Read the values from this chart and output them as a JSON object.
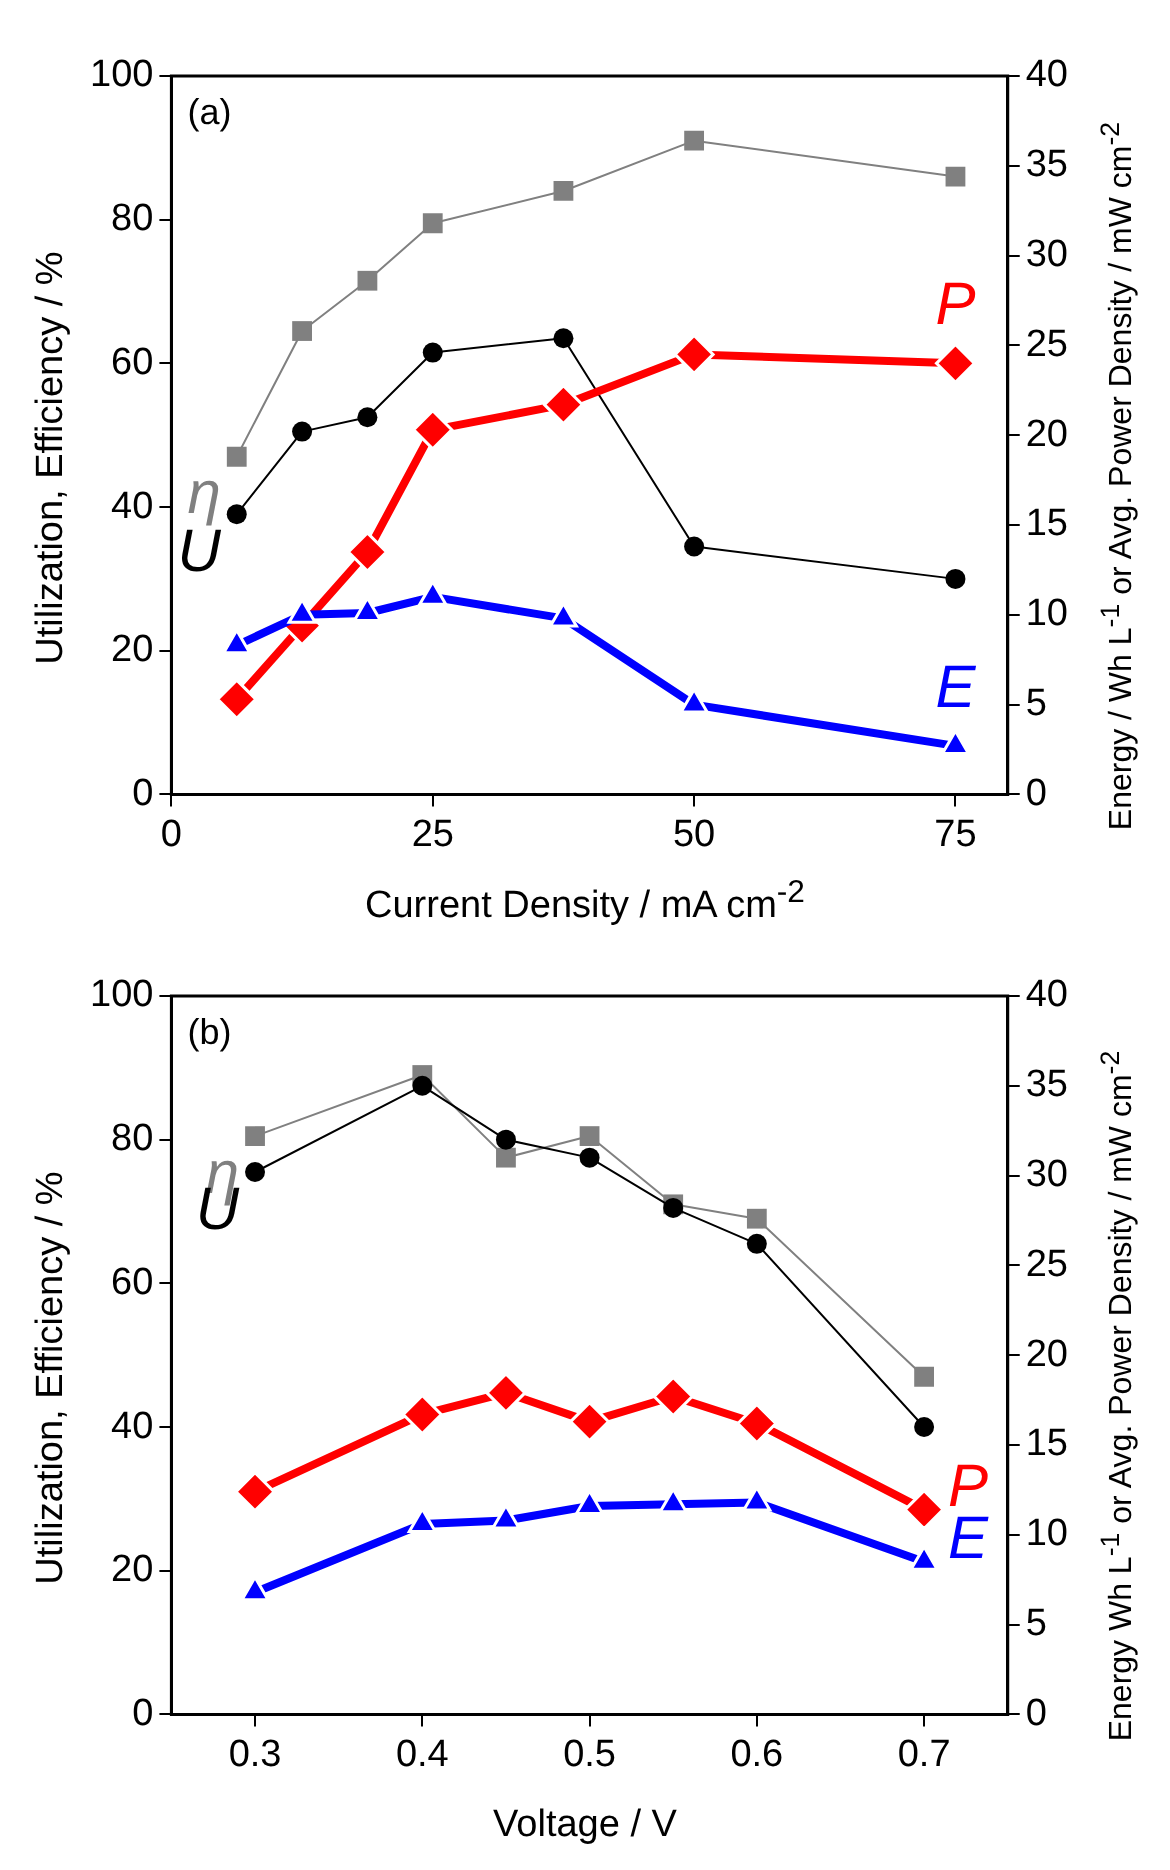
{
  "chart_data": [
    {
      "type": "line",
      "xlabel": "Current Density / mA cm$^{-2}$",
      "ylabel": "Utilization, Efficiency / %",
      "y2label": "Energy / Wh L$^{-1}$ or Avg. Power Density / mW cm$^{-2}$",
      "annotations": [
        "(a)"
      ],
      "x": [
        6.25,
        12.5,
        18.75,
        25,
        37.5,
        50,
        75
      ],
      "xlim": [
        0,
        80
      ],
      "xticks": [
        0,
        25,
        50,
        75
      ],
      "ylim": [
        0,
        100
      ],
      "yticks": [
        0,
        20,
        40,
        60,
        80,
        100
      ],
      "y2lim": [
        0,
        40
      ],
      "y2ticks": [
        0,
        5,
        10,
        15,
        20,
        25,
        30,
        35,
        40
      ],
      "grid": false,
      "legend": false,
      "line_style": "solid",
      "series": [
        {
          "name": "η",
          "color": "#808080",
          "marker": "square",
          "values": [
            47,
            64.5,
            71.5,
            79.5,
            84,
            91,
            86
          ]
        },
        {
          "name": "U",
          "color": "#000000",
          "marker": "circle",
          "values": [
            39,
            50.5,
            52.5,
            61.5,
            63.5,
            34.5,
            30
          ]
        },
        {
          "name": "P",
          "color": "#ff0000",
          "marker": "diamond",
          "axis": "y2",
          "values": [
            5.3,
            9.4,
            13.5,
            20.3,
            21.7,
            24.5,
            24
          ]
        },
        {
          "name": "E",
          "color": "#0000ff",
          "marker": "triangle",
          "axis": "y2",
          "values": [
            8.3,
            10,
            10.1,
            11,
            9.8,
            5,
            2.7
          ]
        }
      ]
    },
    {
      "type": "line",
      "xlabel": "Voltage / V",
      "ylabel": "Utilization, Efficiency / %",
      "y2label": "Energy Wh L$^{-1}$ or Avg. Power Density / mW cm$^{-2}$",
      "annotations": [
        "(b)"
      ],
      "x": [
        0.3,
        0.4,
        0.45,
        0.5,
        0.55,
        0.6,
        0.7
      ],
      "xlim": [
        0.25,
        0.75
      ],
      "xticks": [
        0.3,
        0.4,
        0.5,
        0.6,
        0.7
      ],
      "ylim": [
        0,
        100
      ],
      "yticks": [
        0,
        20,
        40,
        60,
        80,
        100
      ],
      "y2lim": [
        0,
        40
      ],
      "y2ticks": [
        0,
        5,
        10,
        15,
        20,
        25,
        30,
        35,
        40
      ],
      "grid": false,
      "legend": false,
      "line_style": "solid",
      "series": [
        {
          "name": "η",
          "color": "#808080",
          "marker": "square",
          "values": [
            80.5,
            89,
            77.5,
            80.5,
            71,
            69,
            47
          ]
        },
        {
          "name": "U",
          "color": "#000000",
          "marker": "circle",
          "values": [
            75.5,
            87.5,
            80,
            77.5,
            70.5,
            65.5,
            40
          ]
        },
        {
          "name": "P",
          "color": "#ff0000",
          "marker": "diamond",
          "axis": "y2",
          "values": [
            12.4,
            16.7,
            17.9,
            16.3,
            17.7,
            16.2,
            11.4
          ]
        },
        {
          "name": "E",
          "color": "#0000ff",
          "marker": "triangle",
          "axis": "y2",
          "values": [
            6.8,
            10.6,
            10.8,
            11.6,
            11.7,
            11.8,
            8.5
          ]
        }
      ]
    }
  ]
}
